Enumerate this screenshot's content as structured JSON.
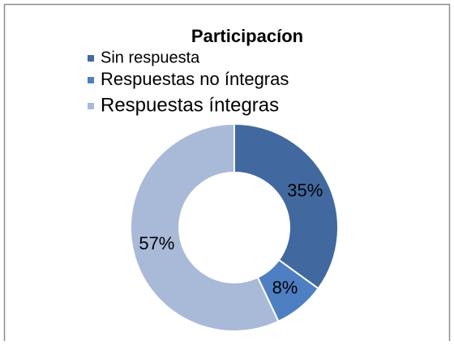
{
  "chart_data": {
    "type": "donut",
    "title": "Participacíon",
    "categories": [
      "Sin respuesta",
      "Respuestas no íntegras",
      "Respuestas íntegras"
    ],
    "values": [
      35,
      8,
      57
    ],
    "value_labels": [
      "35%",
      "8%",
      "57%"
    ],
    "colors": [
      "#41699f",
      "#4e7fc2",
      "#a9b9d8"
    ]
  }
}
